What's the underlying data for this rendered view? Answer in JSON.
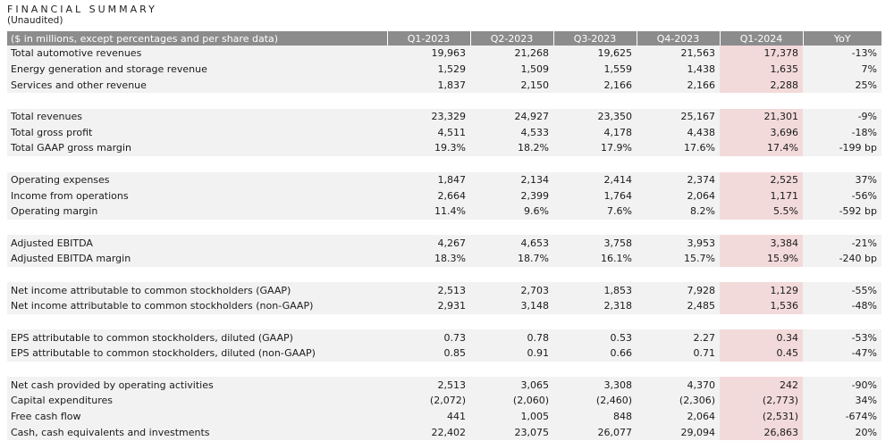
{
  "header": {
    "title": "FINANCIAL SUMMARY",
    "subtitle": "(Unaudited)"
  },
  "table": {
    "columns": [
      "($ in millions, except percentages and per share data)",
      "Q1-2023",
      "Q2-2023",
      "Q3-2023",
      "Q4-2023",
      "Q1-2024",
      "YoY"
    ],
    "highlight_column": "Q1-2024",
    "highlight_color": "#f3dada",
    "header_color": "#8c8c8c",
    "groups": [
      {
        "rows": [
          {
            "label": "Total automotive revenues",
            "values": [
              "19,963",
              "21,268",
              "19,625",
              "21,563",
              "17,378",
              "-13%"
            ]
          },
          {
            "label": "Energy generation and storage revenue",
            "values": [
              "1,529",
              "1,509",
              "1,559",
              "1,438",
              "1,635",
              "7%"
            ]
          },
          {
            "label": "Services and other revenue",
            "values": [
              "1,837",
              "2,150",
              "2,166",
              "2,166",
              "2,288",
              "25%"
            ]
          }
        ]
      },
      {
        "rows": [
          {
            "label": "Total revenues",
            "values": [
              "23,329",
              "24,927",
              "23,350",
              "25,167",
              "21,301",
              "-9%"
            ]
          },
          {
            "label": "Total gross profit",
            "values": [
              "4,511",
              "4,533",
              "4,178",
              "4,438",
              "3,696",
              "-18%"
            ]
          },
          {
            "label": "Total GAAP gross margin",
            "values": [
              "19.3%",
              "18.2%",
              "17.9%",
              "17.6%",
              "17.4%",
              "-199 bp"
            ]
          }
        ]
      },
      {
        "rows": [
          {
            "label": "Operating expenses",
            "values": [
              "1,847",
              "2,134",
              "2,414",
              "2,374",
              "2,525",
              "37%"
            ]
          },
          {
            "label": "Income from operations",
            "values": [
              "2,664",
              "2,399",
              "1,764",
              "2,064",
              "1,171",
              "-56%"
            ]
          },
          {
            "label": "Operating margin",
            "values": [
              "11.4%",
              "9.6%",
              "7.6%",
              "8.2%",
              "5.5%",
              "-592 bp"
            ]
          }
        ]
      },
      {
        "rows": [
          {
            "label": "Adjusted EBITDA",
            "values": [
              "4,267",
              "4,653",
              "3,758",
              "3,953",
              "3,384",
              "-21%"
            ]
          },
          {
            "label": "Adjusted EBITDA margin",
            "values": [
              "18.3%",
              "18.7%",
              "16.1%",
              "15.7%",
              "15.9%",
              "-240 bp"
            ]
          }
        ]
      },
      {
        "rows": [
          {
            "label": "Net income attributable to common stockholders (GAAP)",
            "values": [
              "2,513",
              "2,703",
              "1,853",
              "7,928",
              "1,129",
              "-55%"
            ]
          },
          {
            "label": "Net income attributable to common stockholders (non-GAAP)",
            "values": [
              "2,931",
              "3,148",
              "2,318",
              "2,485",
              "1,536",
              "-48%"
            ]
          }
        ]
      },
      {
        "rows": [
          {
            "label": "EPS attributable to common stockholders, diluted (GAAP)",
            "values": [
              "0.73",
              "0.78",
              "0.53",
              "2.27",
              "0.34",
              "-53%"
            ]
          },
          {
            "label": "EPS attributable to common stockholders, diluted (non-GAAP)",
            "values": [
              "0.85",
              "0.91",
              "0.66",
              "0.71",
              "0.45",
              "-47%"
            ]
          }
        ]
      },
      {
        "rows": [
          {
            "label": "Net cash provided by operating activities",
            "values": [
              "2,513",
              "3,065",
              "3,308",
              "4,370",
              "242",
              "-90%"
            ]
          },
          {
            "label": "Capital expenditures",
            "values": [
              "(2,072)",
              "(2,060)",
              "(2,460)",
              "(2,306)",
              "(2,773)",
              "34%"
            ]
          },
          {
            "label": "Free cash flow",
            "values": [
              "441",
              "1,005",
              "848",
              "2,064",
              "(2,531)",
              "-674%"
            ]
          },
          {
            "label": "Cash, cash equivalents and investments",
            "values": [
              "22,402",
              "23,075",
              "26,077",
              "29,094",
              "26,863",
              "20%"
            ]
          }
        ]
      }
    ]
  }
}
